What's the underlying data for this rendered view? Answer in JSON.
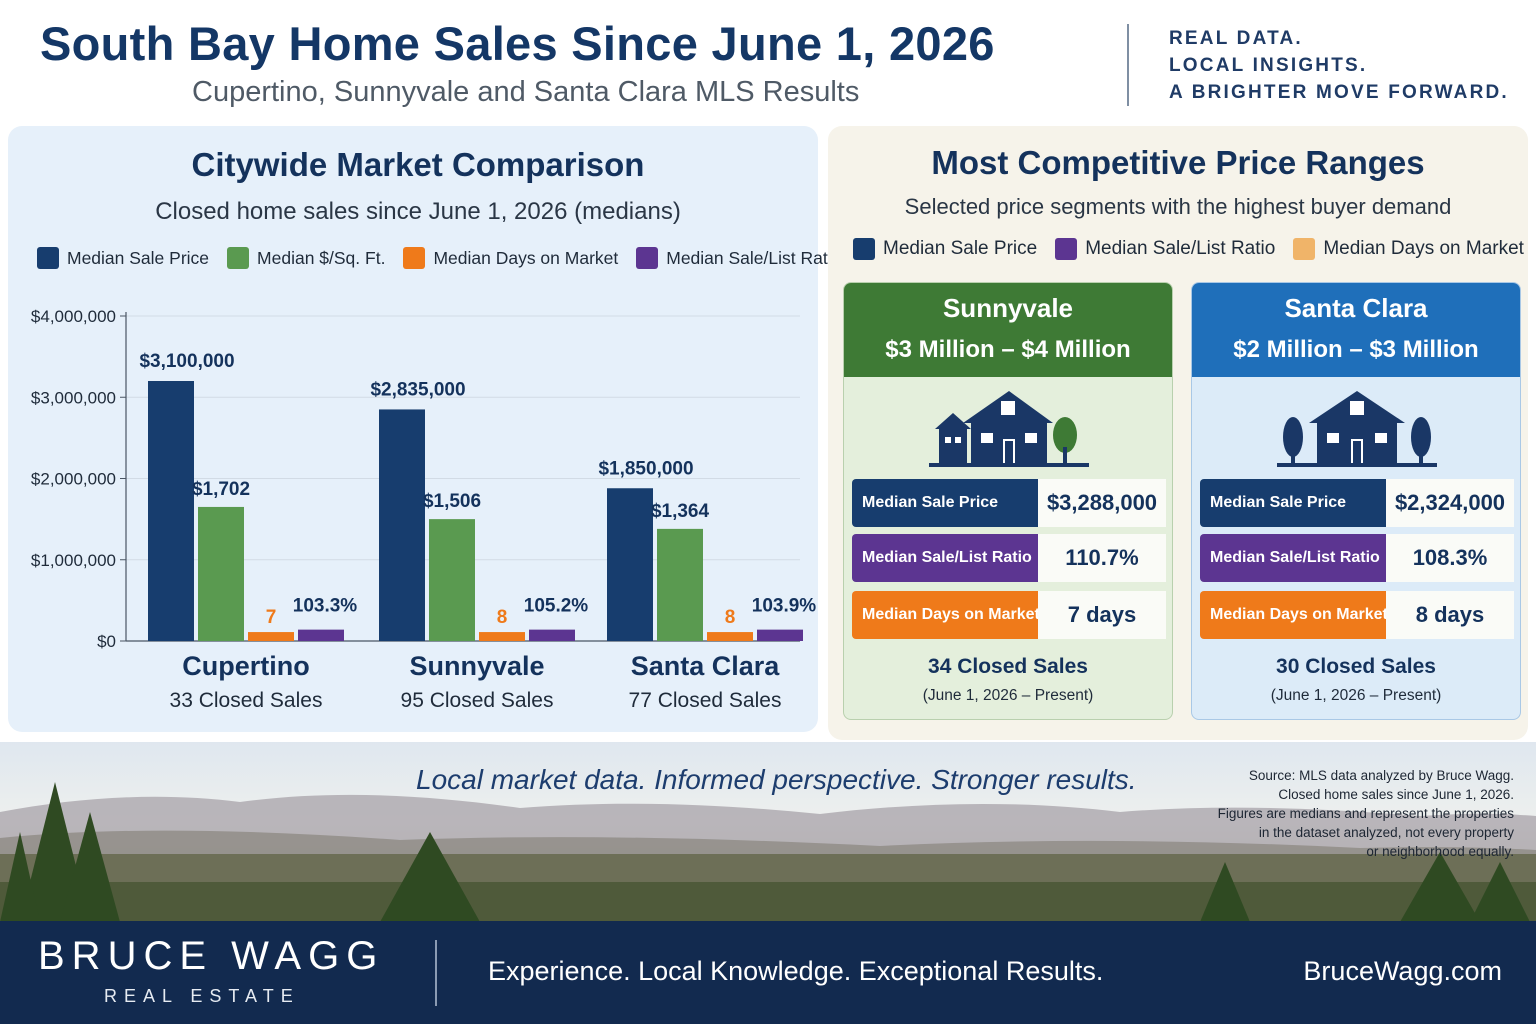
{
  "header": {
    "title": "South Bay Home Sales Since June 1, 2026",
    "subtitle": "Cupertino, Sunnyvale and Santa Clara MLS Results",
    "tagline_lines": [
      "REAL DATA.",
      "LOCAL INSIGHTS.",
      "A BRIGHTER MOVE FORWARD."
    ]
  },
  "left": {
    "title": "Citywide Market Comparison",
    "subtitle": "Closed home sales since June 1, 2026 (medians)",
    "legend": [
      "Median Sale Price",
      "Median $/Sq. Ft.",
      "Median Days on Market",
      "Median Sale/List Ratio"
    ]
  },
  "colors": {
    "navy": "#173d6e",
    "green": "#5a9a50",
    "orange": "#ef7a1a",
    "purple": "#5c3591",
    "light_orange": "#f0b469",
    "sunnyvale_green": "#3e7a35",
    "santa_clara_blue": "#1f6fba"
  },
  "chart_data": {
    "type": "bar",
    "categories": [
      "Cupertino",
      "Sunnyvale",
      "Santa Clara"
    ],
    "closed_sales_labels": [
      "33 Closed Sales",
      "95 Closed Sales",
      "77 Closed Sales"
    ],
    "y_axis": {
      "ylim": [
        0,
        4000000
      ],
      "ticks": [
        0,
        1000000,
        2000000,
        3000000,
        4000000
      ],
      "tick_labels": [
        "$0",
        "$1,000,000",
        "$2,000,000",
        "$3,000,000",
        "$4,000,000"
      ],
      "grid": true
    },
    "series": [
      {
        "name": "Median Sale Price",
        "values": [
          3100000,
          2835000,
          1850000
        ],
        "labels": [
          "$3,100,000",
          "$2,835,000",
          "$1,850,000"
        ],
        "bar_heights_on_axis": [
          3200000,
          2850000,
          1880000
        ]
      },
      {
        "name": "Median $/Sq. Ft.",
        "values": [
          1702,
          1506,
          1364
        ],
        "labels": [
          "$1,702",
          "$1,506",
          "$1,364"
        ],
        "bar_heights_on_axis": [
          1650000,
          1500000,
          1380000
        ]
      },
      {
        "name": "Median Days on Market",
        "values": [
          7,
          8,
          8
        ],
        "labels": [
          "7",
          "8",
          "8"
        ],
        "bar_heights_on_axis": [
          110000,
          110000,
          110000
        ]
      },
      {
        "name": "Median Sale/List Ratio",
        "values": [
          103.3,
          105.2,
          103.9
        ],
        "labels": [
          "103.3%",
          "105.2%",
          "103.9%"
        ],
        "bar_heights_on_axis": [
          140000,
          140000,
          140000
        ]
      }
    ]
  },
  "right": {
    "title": "Most Competitive Price Ranges",
    "subtitle": "Selected price segments with the highest buyer demand",
    "legend": [
      "Median Sale Price",
      "Median Sale/List Ratio",
      "Median Days on Market"
    ],
    "cards": [
      {
        "city": "Sunnyvale",
        "range": "$3 Million – $4 Million",
        "rows": [
          {
            "label": "Median Sale Price",
            "value": "$3,288,000"
          },
          {
            "label": "Median Sale/List Ratio",
            "value": "110.7%"
          },
          {
            "label": "Median Days on Market",
            "value": "7 days"
          }
        ],
        "closed": "34 Closed Sales",
        "period": "(June 1, 2026 – Present)"
      },
      {
        "city": "Santa Clara",
        "range": "$2 Million – $3 Million",
        "rows": [
          {
            "label": "Median Sale Price",
            "value": "$2,324,000"
          },
          {
            "label": "Median Sale/List Ratio",
            "value": "108.3%"
          },
          {
            "label": "Median Days on Market",
            "value": "8 days"
          }
        ],
        "closed": "30 Closed Sales",
        "period": "(June 1, 2026 – Present)"
      }
    ]
  },
  "banner": {
    "tagline": "Local market data. Informed perspective. Stronger results.",
    "source_lines": [
      "Source: MLS data analyzed by Bruce Wagg.",
      "Closed home sales since June 1, 2026.",
      "Figures are medians and represent the properties",
      "in the dataset analyzed, not every property",
      "or neighborhood equally."
    ]
  },
  "footer": {
    "brand": "BRUCE WAGG",
    "brand_sub": "REAL ESTATE",
    "slogan": "Experience. Local Knowledge. Exceptional Results.",
    "website": "BruceWagg.com"
  }
}
